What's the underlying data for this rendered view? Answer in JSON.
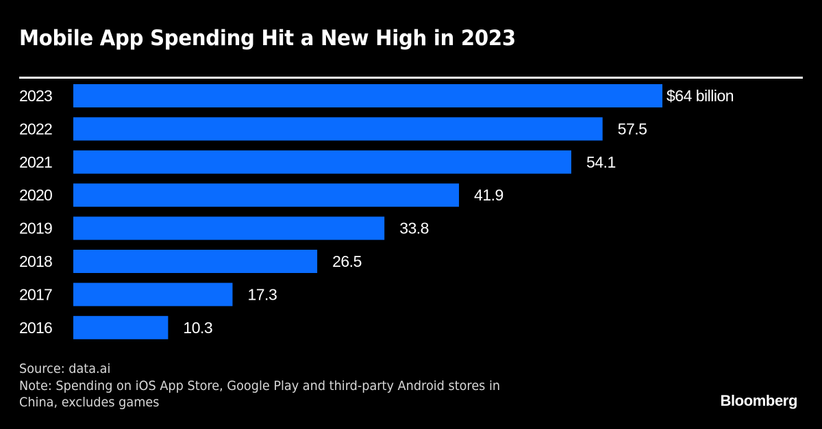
{
  "chart_data": {
    "type": "bar",
    "orientation": "horizontal",
    "title": "Mobile App Spending Hit a New High in 2023",
    "categories": [
      "2023",
      "2022",
      "2021",
      "2020",
      "2019",
      "2018",
      "2017",
      "2016"
    ],
    "values": [
      64,
      57.5,
      54.1,
      41.9,
      33.8,
      26.5,
      17.3,
      10.3
    ],
    "data_labels": [
      "$64 billion",
      "57.5",
      "54.1",
      "41.9",
      "33.8",
      "26.5",
      "17.3",
      "10.3"
    ],
    "unit": "billion USD",
    "xlabel": "",
    "ylabel": "",
    "xlim": [
      0,
      64
    ],
    "grid": false,
    "legend": "none",
    "bar_color": "#0a6cff"
  },
  "footer": {
    "source": "Source: data.ai",
    "note_line1": "Note: Spending on iOS App Store, Google Play and third-party Android stores in",
    "note_line2": "China, excludes games"
  },
  "brand": "Bloomberg",
  "colors": {
    "background": "#000000",
    "bar": "#0a6cff",
    "text": "#ffffff"
  }
}
